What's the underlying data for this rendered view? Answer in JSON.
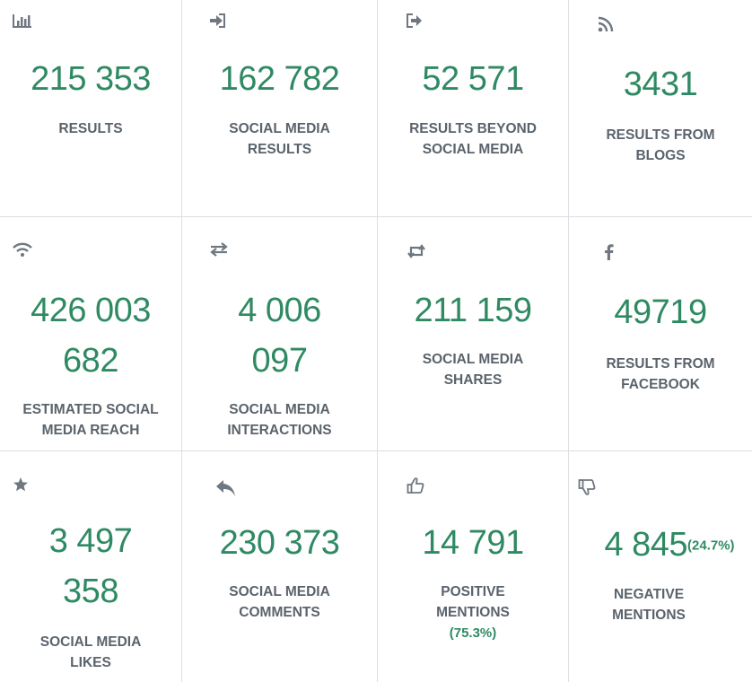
{
  "tiles": [
    {
      "value": "215 353",
      "label1": "RESULTS",
      "label2": ""
    },
    {
      "value": "162 782",
      "label1": "SOCIAL MEDIA",
      "label2": "RESULTS"
    },
    {
      "value": "52 571",
      "label1": "RESULTS BEYOND",
      "label2": "SOCIAL MEDIA"
    },
    {
      "value": "3431",
      "label1": "RESULTS FROM",
      "label2": "BLOGS"
    },
    {
      "value1": "426 003",
      "value2": "682",
      "label1": "ESTIMATED SOCIAL",
      "label2": "MEDIA REACH"
    },
    {
      "value1": "4 006",
      "value2": "097",
      "label1": "SOCIAL MEDIA",
      "label2": "INTERACTIONS"
    },
    {
      "value": "211 159",
      "label1": "SOCIAL MEDIA",
      "label2": "SHARES"
    },
    {
      "value": "49719",
      "label1": "RESULTS FROM",
      "label2": "FACEBOOK"
    },
    {
      "value1": "3 497",
      "value2": "358",
      "label1": "SOCIAL MEDIA",
      "label2": "LIKES"
    },
    {
      "value": "230 373",
      "label1": "SOCIAL MEDIA",
      "label2": "COMMENTS"
    },
    {
      "value": "14 791",
      "label1": "POSITIVE",
      "label2": "MENTIONS",
      "percent": "(75.3%)"
    },
    {
      "value": "4 845",
      "percent": "(24.7%)",
      "label1": "NEGATIVE",
      "label2": "MENTIONS"
    }
  ],
  "icons": [
    "bar-chart-icon",
    "sign-in-icon",
    "sign-out-icon",
    "rss-icon",
    "wifi-icon",
    "exchange-icon",
    "retweet-icon",
    "facebook-icon",
    "star-icon",
    "reply-icon",
    "thumbs-up-icon",
    "thumbs-down-icon"
  ],
  "colors": {
    "value": "#2f8a63",
    "label": "#5a636c",
    "icon": "#6f7780",
    "border": "#dcdfe2"
  }
}
